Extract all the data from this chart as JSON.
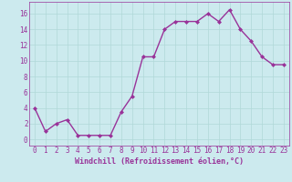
{
  "x": [
    0,
    1,
    2,
    3,
    4,
    5,
    6,
    7,
    8,
    9,
    10,
    11,
    12,
    13,
    14,
    15,
    16,
    17,
    18,
    19,
    20,
    21,
    22,
    23
  ],
  "y": [
    4,
    1,
    2,
    2.5,
    0.5,
    0.5,
    0.5,
    0.5,
    3.5,
    5.5,
    10.5,
    10.5,
    14,
    15,
    15,
    15,
    16,
    15,
    16.5,
    14,
    12.5,
    10.5,
    9.5,
    9.5
  ],
  "line_color": "#993399",
  "marker": "D",
  "marker_size": 2,
  "xlabel": "Windchill (Refroidissement éolien,°C)",
  "xlabel_fontsize": 6,
  "xtick_labels": [
    "0",
    "1",
    "2",
    "3",
    "4",
    "5",
    "6",
    "7",
    "8",
    "9",
    "10",
    "11",
    "12",
    "13",
    "14",
    "15",
    "16",
    "17",
    "18",
    "19",
    "20",
    "21",
    "22",
    "23"
  ],
  "ytick_values": [
    0,
    2,
    4,
    6,
    8,
    10,
    12,
    14,
    16
  ],
  "ylim": [
    -0.8,
    17.5
  ],
  "xlim": [
    -0.5,
    23.5
  ],
  "grid_color": "#b0d8d8",
  "background_color": "#cceaee",
  "tick_fontsize": 5.5,
  "line_width": 1.0
}
